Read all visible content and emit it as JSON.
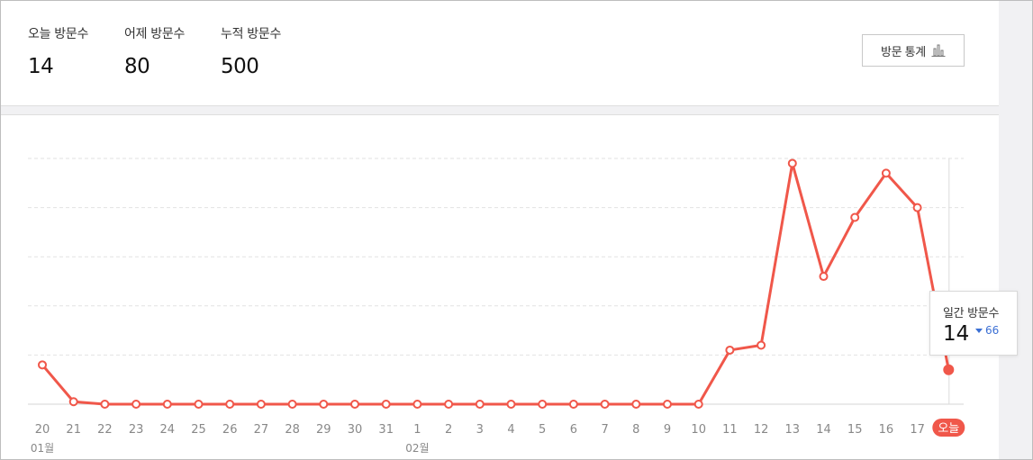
{
  "summary": {
    "today": {
      "label": "오늘 방문수",
      "value": "14"
    },
    "yesterday": {
      "label": "어제 방문수",
      "value": "80"
    },
    "total": {
      "label": "누적 방문수",
      "value": "500"
    },
    "stats_button_label": "방문 통계",
    "stats_button_icon": "bar-chart-icon"
  },
  "tooltip": {
    "label": "일간 방문수",
    "value": "14",
    "diff": "66",
    "diff_direction": "down",
    "diff_color": "#3b6fd4"
  },
  "colors": {
    "line": "#f0574a",
    "grid": "#e2e2e2",
    "tick": "#888888",
    "today_badge": "#f0574a"
  },
  "chart_data": {
    "type": "line",
    "title": "",
    "xlabel": "",
    "ylabel": "",
    "ylim": [
      0,
      100
    ],
    "grid": true,
    "x_ticks": [
      "20",
      "21",
      "22",
      "23",
      "24",
      "25",
      "26",
      "27",
      "28",
      "29",
      "30",
      "31",
      "1",
      "2",
      "3",
      "4",
      "5",
      "6",
      "7",
      "8",
      "9",
      "10",
      "11",
      "12",
      "13",
      "14",
      "15",
      "16",
      "17",
      "오늘"
    ],
    "month_labels": [
      {
        "label": "01월",
        "at_index": 0
      },
      {
        "label": "02월",
        "at_index": 12
      }
    ],
    "highlight_tick": "오늘",
    "series": [
      {
        "values": [
          16,
          1,
          0,
          0,
          0,
          0,
          0,
          0,
          0,
          0,
          0,
          0,
          0,
          0,
          0,
          0,
          0,
          0,
          0,
          0,
          0,
          0,
          22,
          24,
          98,
          52,
          76,
          94,
          80,
          14
        ]
      }
    ]
  }
}
